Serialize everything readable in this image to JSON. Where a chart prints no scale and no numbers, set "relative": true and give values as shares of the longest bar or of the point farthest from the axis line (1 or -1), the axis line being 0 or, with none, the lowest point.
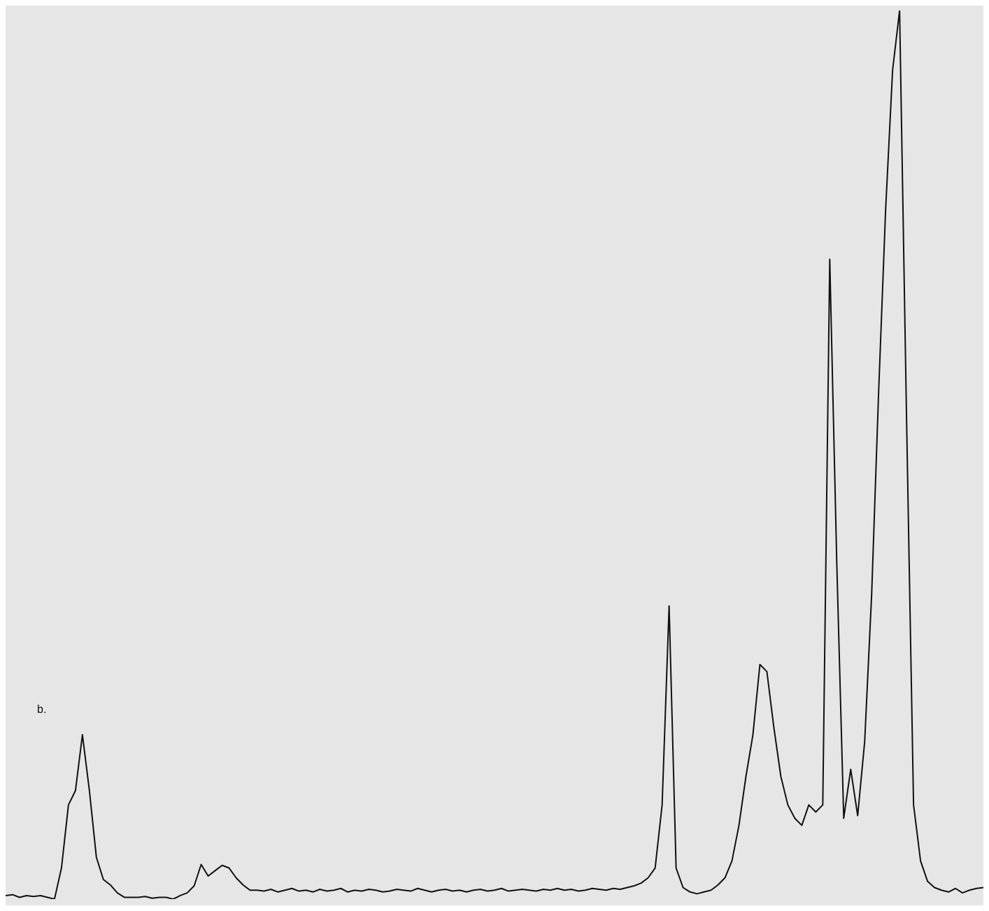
{
  "chart_data": {
    "type": "line",
    "relative": true,
    "color": "#111111",
    "marker": "none",
    "annotations": [
      "b."
    ],
    "categories": [
      null,
      null,
      null,
      null,
      null,
      null,
      null,
      null,
      null,
      null,
      null,
      null,
      null,
      null,
      null,
      null,
      null,
      null,
      null,
      null,
      null,
      null,
      null,
      null,
      null,
      null,
      null,
      null,
      null,
      null,
      null,
      null,
      null,
      null,
      null,
      null,
      null,
      null,
      null,
      null,
      null,
      null,
      null,
      null,
      null,
      null,
      null,
      null,
      null,
      null,
      null,
      null,
      null,
      null,
      null,
      null,
      null,
      null,
      null,
      null,
      null,
      null,
      null,
      null,
      null,
      null,
      null,
      null,
      null,
      null,
      null,
      null,
      null,
      null,
      null,
      null,
      null,
      null,
      null,
      null,
      null,
      null,
      null,
      null,
      null,
      null,
      null,
      null,
      null,
      null,
      null,
      null,
      null,
      null,
      null,
      null,
      null,
      null,
      null,
      null,
      null,
      null,
      null,
      null,
      null,
      null,
      null,
      null,
      null,
      null,
      null,
      null,
      null,
      null,
      null,
      null,
      null,
      null,
      null,
      null,
      null,
      null,
      null,
      null,
      null,
      null,
      null,
      null,
      null,
      null,
      null,
      null,
      null,
      null,
      null,
      null,
      null,
      null,
      null,
      null,
      null
    ],
    "values": [
      0.004,
      0.005,
      0.002,
      0.004,
      0.003,
      0.004,
      0.002,
      0,
      0.035,
      0.106,
      0.122,
      0.185,
      0.122,
      0.047,
      0.022,
      0.016,
      0.007,
      0.002,
      0.002,
      0.002,
      0.003,
      0.001,
      0.002,
      0.002,
      0,
      0.004,
      0.007,
      0.015,
      0.039,
      0.026,
      0.032,
      0.038,
      0.035,
      0.024,
      0.016,
      0.01,
      0.01,
      0.009,
      0.011,
      0.008,
      0.01,
      0.012,
      0.009,
      0.01,
      0.008,
      0.011,
      0.009,
      0.01,
      0.012,
      0.008,
      0.01,
      0.009,
      0.011,
      0.01,
      0.008,
      0.009,
      0.011,
      0.01,
      0.009,
      0.012,
      0.01,
      0.008,
      0.01,
      0.011,
      0.009,
      0.01,
      0.008,
      0.01,
      0.011,
      0.009,
      0.01,
      0.012,
      0.009,
      0.01,
      0.011,
      0.01,
      0.009,
      0.011,
      0.01,
      0.012,
      0.01,
      0.011,
      0.009,
      0.01,
      0.012,
      0.011,
      0.01,
      0.012,
      0.011,
      0.013,
      0.015,
      0.018,
      0.024,
      0.035,
      0.106,
      0.33,
      0.035,
      0.013,
      0.008,
      0.006,
      0.008,
      0.01,
      0.016,
      0.024,
      0.043,
      0.083,
      0.138,
      0.185,
      0.264,
      0.256,
      0.193,
      0.138,
      0.106,
      0.091,
      0.083,
      0.106,
      0.098,
      0.106,
      0.72,
      0.38,
      0.091,
      0.146,
      0.094,
      0.177,
      0.343,
      0.571,
      0.776,
      0.933,
      1,
      0.539,
      0.106,
      0.043,
      0.02,
      0.013,
      0.01,
      0.008,
      0.012,
      0.007,
      0.01,
      0.012,
      0.013
    ]
  }
}
